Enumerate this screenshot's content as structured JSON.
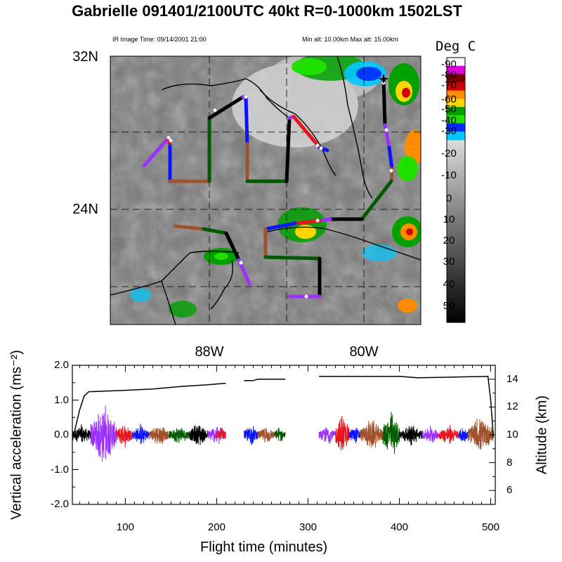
{
  "title": "Gabrielle 091401/2100UTC 40kt  R=0-1000km 1502LST",
  "ir_time": "IR Image Time: 09/14/2001 21:00",
  "alt_range": "Min alt: 10.00km  Max alt: 15.00km",
  "map": {
    "lat_labels": [
      "32N",
      "24N"
    ],
    "lon_labels": [
      "88W",
      "80W"
    ],
    "colorbar_title": "Deg C",
    "colorbar_labels": [
      "-90",
      "-80",
      "-70",
      "-60",
      "-50",
      "-40",
      "-30",
      "-20",
      "-10",
      "0",
      "10",
      "20",
      "30",
      "40",
      "50"
    ],
    "colorbar_colors": [
      "#ffffff",
      "#e000e0",
      "#7a0000",
      "#d40000",
      "#ff8c00",
      "#ffd400",
      "#00a000",
      "#20e000",
      "#0028ff",
      "#00c8ff"
    ],
    "track_segment_colors": [
      "#9b30ff",
      "#e8141e",
      "#0a14ff",
      "#a0522d",
      "#005a00",
      "#000000",
      "#9b30ff",
      "#0a14ff",
      "#a0522d",
      "#005a00",
      "#000000",
      "#9b30ff",
      "#e8141e",
      "#0a14ff",
      "#a0522d",
      "#005a00",
      "#000000",
      "#9b30ff",
      "#e8141e"
    ]
  },
  "chart_data": {
    "type": "line",
    "xlabel": "Flight time (minutes)",
    "ylabel_left": "Vertical acceleration (ms⁻²)",
    "ylabel_right": "Altitude (km)",
    "xlim": [
      42,
      505
    ],
    "ylim_left": [
      -2.0,
      2.0
    ],
    "ylim_right": [
      5,
      15
    ],
    "x_ticks": [
      "100",
      "200",
      "300",
      "400",
      "500"
    ],
    "y_left_ticks": [
      "2.0",
      "1.0",
      "0.0",
      "-1.0",
      "-2.0"
    ],
    "y_right_ticks": [
      "6",
      "8",
      "10",
      "12",
      "14"
    ],
    "altitude_series": {
      "name": "Altitude",
      "segments": [
        [
          [
            42,
            9.6
          ],
          [
            50,
            11.8
          ],
          [
            55,
            12.8
          ],
          [
            60,
            13.1
          ],
          [
            100,
            13.2
          ],
          [
            130,
            13.3
          ],
          [
            165,
            13.5
          ],
          [
            190,
            13.6
          ],
          [
            208,
            13.7
          ],
          [
            210,
            13.7
          ]
        ],
        [
          [
            230,
            13.9
          ],
          [
            240,
            13.9
          ],
          [
            245,
            14.0
          ],
          [
            275,
            14.0
          ]
        ],
        [
          [
            312,
            14.2
          ],
          [
            400,
            14.2
          ],
          [
            420,
            14.1
          ],
          [
            497,
            14.2
          ],
          [
            500,
            12.5
          ],
          [
            503,
            9.8
          ]
        ]
      ]
    },
    "acceleration_segments": [
      {
        "start": 42,
        "end": 62,
        "color": "#000000",
        "peak": 0.35
      },
      {
        "start": 62,
        "end": 90,
        "color": "#9b30ff",
        "peak": 1.0
      },
      {
        "start": 90,
        "end": 108,
        "color": "#e8141e",
        "peak": 0.4
      },
      {
        "start": 108,
        "end": 126,
        "color": "#0a14ff",
        "peak": 0.35
      },
      {
        "start": 126,
        "end": 148,
        "color": "#a0522d",
        "peak": 0.35
      },
      {
        "start": 148,
        "end": 170,
        "color": "#005a00",
        "peak": 0.3
      },
      {
        "start": 170,
        "end": 190,
        "color": "#000000",
        "peak": 0.4
      },
      {
        "start": 190,
        "end": 210,
        "color": "#9b30ff",
        "peak": 0.35
      },
      {
        "start": 200,
        "end": 210,
        "color": "#e8141e",
        "peak": 0.25
      },
      {
        "start": 230,
        "end": 245,
        "color": "#0a14ff",
        "peak": 0.35
      },
      {
        "start": 245,
        "end": 263,
        "color": "#a0522d",
        "peak": 0.3
      },
      {
        "start": 263,
        "end": 275,
        "color": "#005a00",
        "peak": 0.25
      },
      {
        "start": 312,
        "end": 330,
        "color": "#9b30ff",
        "peak": 0.3
      },
      {
        "start": 330,
        "end": 345,
        "color": "#e8141e",
        "peak": 0.7
      },
      {
        "start": 345,
        "end": 357,
        "color": "#0a14ff",
        "peak": 0.35
      },
      {
        "start": 357,
        "end": 382,
        "color": "#a0522d",
        "peak": 0.5
      },
      {
        "start": 382,
        "end": 400,
        "color": "#005a00",
        "peak": 0.8
      },
      {
        "start": 400,
        "end": 425,
        "color": "#000000",
        "peak": 0.35
      },
      {
        "start": 425,
        "end": 443,
        "color": "#9b30ff",
        "peak": 0.3
      },
      {
        "start": 443,
        "end": 465,
        "color": "#e8141e",
        "peak": 0.35
      },
      {
        "start": 465,
        "end": 475,
        "color": "#0a14ff",
        "peak": 0.3
      },
      {
        "start": 475,
        "end": 503,
        "color": "#a0522d",
        "peak": 0.6
      }
    ]
  }
}
